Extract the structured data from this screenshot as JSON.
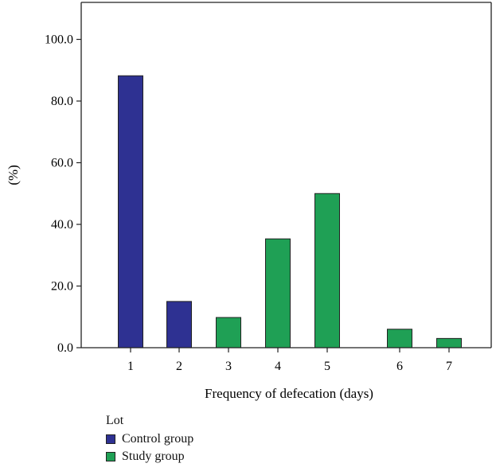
{
  "chart_data": {
    "type": "bar",
    "title": "",
    "xlabel": "Frequency of defecation (days)",
    "ylabel": "(%)",
    "ylim": [
      0,
      112
    ],
    "y_ticks": [
      "0.0",
      "20.0",
      "40.0",
      "60.0",
      "80.0",
      "100.0"
    ],
    "categories": [
      "1",
      "2",
      "3",
      "4",
      "5",
      "6",
      "7"
    ],
    "series": [
      {
        "name": "Control group",
        "color": "#2e3192",
        "values": [
          88.2,
          15.0,
          null,
          null,
          null,
          null,
          null
        ]
      },
      {
        "name": "Study group",
        "color": "#1fa055",
        "values": [
          null,
          null,
          9.8,
          35.3,
          50.0,
          6.0,
          3.0
        ]
      }
    ],
    "legend": {
      "title": "Lot",
      "position": "bottom-left"
    },
    "grid": false
  }
}
